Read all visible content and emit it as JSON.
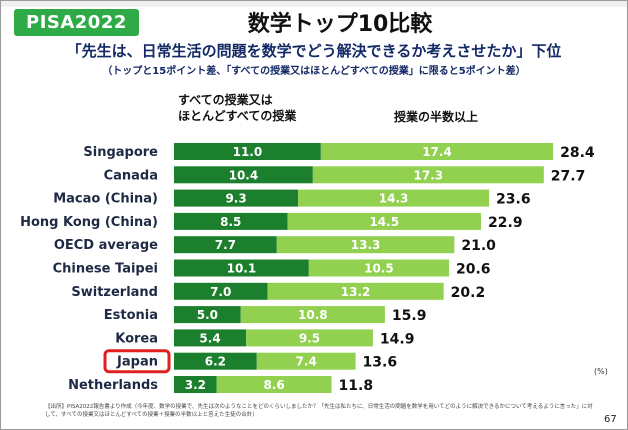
{
  "badge": "PISA2022",
  "title": "数学トップ10比較",
  "subtitle": "「先生は、日常生活の問題を数学でどう解決できるか考えさせたか」下位",
  "subnote": "（トップと15ポイント差、「すべての授業又はほとんどすべての授業」に限ると5ポイント差）",
  "chart_data": {
    "type": "bar",
    "orientation": "horizontal",
    "stacked": true,
    "categories": [
      "Singapore",
      "Canada",
      "Macao (China)",
      "Hong Kong (China)",
      "OECD average",
      "Chinese Taipei",
      "Switzerland",
      "Estonia",
      "Korea",
      "Japan",
      "Netherlands"
    ],
    "series": [
      {
        "name": "すべての授業又はほとんどすべての授業",
        "color": "#1c7f2e",
        "values": [
          11.0,
          10.4,
          9.3,
          8.5,
          7.7,
          10.1,
          7.0,
          5.0,
          5.4,
          6.2,
          3.2
        ]
      },
      {
        "name": "授業の半数以上",
        "color": "#92d050",
        "values": [
          17.4,
          17.3,
          14.3,
          14.5,
          13.3,
          10.5,
          13.2,
          10.8,
          9.5,
          7.4,
          8.6
        ]
      }
    ],
    "value_labels": [
      [
        "11.0",
        "10.4",
        "9.3",
        "8.5",
        "7.7",
        "10.1",
        "7.0",
        "5.0",
        "5.4",
        "6.2",
        "3.2"
      ],
      [
        "17.4",
        "17.3",
        "14.3",
        "14.5",
        "13.3",
        "10.5",
        "13.2",
        "10.8",
        "9.5",
        "7.4",
        "8.6"
      ]
    ],
    "totals": [
      "28.4",
      "27.7",
      "23.6",
      "22.9",
      "21.0",
      "20.6",
      "20.2",
      "15.9",
      "14.9",
      "13.6",
      "11.8"
    ],
    "highlight": "Japan",
    "highlight_color": "#e02020",
    "legend": {
      "left_line1": "すべての授業又は",
      "left_line2": "ほとんどすべての授業",
      "right": "授業の半数以上"
    },
    "unit": "(%)",
    "xlim": [
      0,
      30
    ]
  },
  "footer": "【出所】PISA2022報告書より作成（今年度、数学の授業で、先生は次のようなことをどのくらいしましたか？「先生は私たちに、日常生活の問題を数学を用いてどのように解決できるかについて考えるように言った」に対して、すべての授業又はほとんどすべての授業＋授業の半数以上と答えた生徒の合計）",
  "page_number": "67"
}
